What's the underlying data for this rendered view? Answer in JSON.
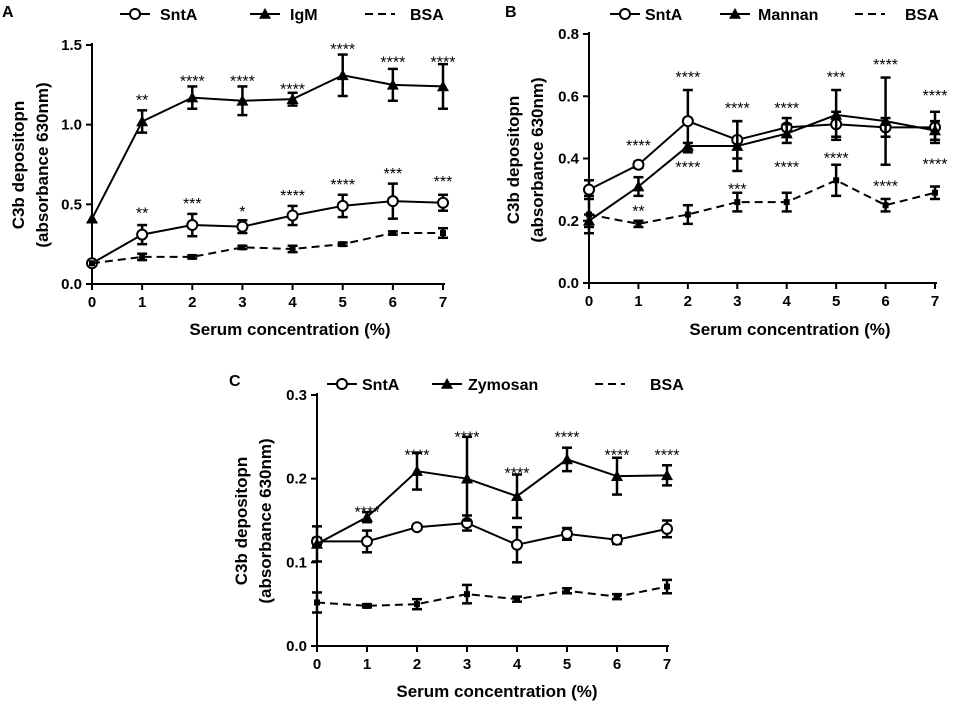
{
  "chart_data": [
    {
      "type": "line",
      "panel": "A",
      "xlabel": "Serum concentration (%)",
      "ylabel_line1": "C3b depositopn",
      "ylabel_line2": "(absorbance 630nm)",
      "x": [
        0,
        1,
        2,
        3,
        4,
        5,
        6,
        7
      ],
      "ylim": [
        0,
        1.5
      ],
      "yticks": [
        "0.0",
        "0.5",
        "1.0",
        "1.5"
      ],
      "xticks": [
        "0",
        "1",
        "2",
        "3",
        "4",
        "5",
        "6",
        "7"
      ],
      "legend": [
        "SntA",
        "IgM",
        "BSA"
      ],
      "series": [
        {
          "name": "SntA",
          "marker": "circle",
          "values": [
            0.13,
            0.31,
            0.37,
            0.36,
            0.43,
            0.49,
            0.52,
            0.51
          ],
          "errors": [
            0.0,
            0.06,
            0.07,
            0.04,
            0.06,
            0.07,
            0.11,
            0.05
          ]
        },
        {
          "name": "IgM",
          "marker": "triangle",
          "values": [
            0.41,
            1.02,
            1.17,
            1.15,
            1.16,
            1.31,
            1.25,
            1.24
          ],
          "errors": [
            0.0,
            0.07,
            0.07,
            0.09,
            0.04,
            0.13,
            0.1,
            0.14
          ]
        },
        {
          "name": "BSA",
          "marker": "none",
          "dashed": true,
          "values": [
            0.13,
            0.17,
            0.17,
            0.23,
            0.22,
            0.25,
            0.32,
            0.32
          ],
          "errors": [
            0.0,
            0.02,
            0.01,
            0.01,
            0.02,
            0.01,
            0.01,
            0.03
          ]
        }
      ],
      "significance": [
        {
          "x": 1,
          "y": 1.17,
          "label": "**"
        },
        {
          "x": 2,
          "y": 1.29,
          "label": "****"
        },
        {
          "x": 3,
          "y": 1.29,
          "label": "****"
        },
        {
          "x": 4,
          "y": 1.24,
          "label": "****"
        },
        {
          "x": 5,
          "y": 1.49,
          "label": "****"
        },
        {
          "x": 6,
          "y": 1.41,
          "label": "****"
        },
        {
          "x": 7,
          "y": 1.41,
          "label": "****"
        },
        {
          "x": 1,
          "y": 0.46,
          "label": "**"
        },
        {
          "x": 2,
          "y": 0.52,
          "label": "***"
        },
        {
          "x": 3,
          "y": 0.47,
          "label": "*"
        },
        {
          "x": 4,
          "y": 0.57,
          "label": "****"
        },
        {
          "x": 5,
          "y": 0.64,
          "label": "****"
        },
        {
          "x": 6,
          "y": 0.71,
          "label": "***"
        },
        {
          "x": 7,
          "y": 0.66,
          "label": "***"
        }
      ]
    },
    {
      "type": "line",
      "panel": "B",
      "xlabel": "Serum concentration (%)",
      "ylabel_line1": "C3b depositopn",
      "ylabel_line2": "(absorbance 630nm)",
      "x": [
        0,
        1,
        2,
        3,
        4,
        5,
        6,
        7
      ],
      "ylim": [
        0,
        0.8
      ],
      "yticks": [
        "0.0",
        "0.2",
        "0.4",
        "0.6",
        "0.8"
      ],
      "xticks": [
        "0",
        "1",
        "2",
        "3",
        "4",
        "5",
        "6",
        "7"
      ],
      "legend": [
        "SntA",
        "Mannan",
        "BSA"
      ],
      "series": [
        {
          "name": "SntA",
          "marker": "circle",
          "values": [
            0.3,
            0.38,
            0.52,
            0.46,
            0.5,
            0.51,
            0.5,
            0.5
          ],
          "errors": [
            0.03,
            0.01,
            0.1,
            0.06,
            0.03,
            0.04,
            0.03,
            0.05
          ]
        },
        {
          "name": "Mannan",
          "marker": "triangle",
          "values": [
            0.2,
            0.31,
            0.44,
            0.44,
            0.48,
            0.54,
            0.52,
            0.49
          ],
          "errors": [
            0.02,
            0.03,
            0.01,
            0.08,
            0.03,
            0.08,
            0.14,
            0.03
          ]
        },
        {
          "name": "BSA",
          "marker": "none",
          "dashed": true,
          "values": [
            0.22,
            0.19,
            0.22,
            0.26,
            0.26,
            0.33,
            0.25,
            0.29
          ],
          "errors": [
            0.06,
            0.01,
            0.03,
            0.03,
            0.03,
            0.05,
            0.02,
            0.02
          ]
        }
      ],
      "significance": [
        {
          "x": 1,
          "y": 0.45,
          "label": "****"
        },
        {
          "x": 2,
          "y": 0.67,
          "label": "****"
        },
        {
          "x": 3,
          "y": 0.57,
          "label": "****"
        },
        {
          "x": 4,
          "y": 0.57,
          "label": "****"
        },
        {
          "x": 5,
          "y": 0.67,
          "label": "***"
        },
        {
          "x": 6,
          "y": 0.71,
          "label": "****"
        },
        {
          "x": 7,
          "y": 0.61,
          "label": "****"
        },
        {
          "x": 2,
          "y": 0.38,
          "label": "****"
        },
        {
          "x": 4,
          "y": 0.38,
          "label": "****"
        },
        {
          "x": 5,
          "y": 0.41,
          "label": "****"
        },
        {
          "x": 6,
          "y": 0.32,
          "label": "****"
        },
        {
          "x": 7,
          "y": 0.39,
          "label": "****"
        },
        {
          "x": 1,
          "y": 0.24,
          "label": "**"
        },
        {
          "x": 3,
          "y": 0.31,
          "label": "***"
        }
      ]
    },
    {
      "type": "line",
      "panel": "C",
      "xlabel": "Serum concentration (%)",
      "ylabel_line1": "C3b depositopn",
      "ylabel_line2": "(absorbance 630nm)",
      "x": [
        0,
        1,
        2,
        3,
        4,
        5,
        6,
        7
      ],
      "ylim": [
        0,
        0.3
      ],
      "yticks": [
        "0.0",
        "0.1",
        "0.2",
        "0.3"
      ],
      "xticks": [
        "0",
        "1",
        "2",
        "3",
        "4",
        "5",
        "6",
        "7"
      ],
      "legend": [
        "SntA",
        "Zymosan",
        "BSA"
      ],
      "series": [
        {
          "name": "SntA",
          "marker": "circle",
          "values": [
            0.125,
            0.125,
            0.142,
            0.147,
            0.121,
            0.134,
            0.127,
            0.14
          ],
          "errors": [
            0.004,
            0.013,
            0.003,
            0.009,
            0.021,
            0.007,
            0.005,
            0.01
          ]
        },
        {
          "name": "Zymosan",
          "marker": "triangle",
          "values": [
            0.122,
            0.154,
            0.209,
            0.2,
            0.179,
            0.223,
            0.203,
            0.204
          ],
          "errors": [
            0.021,
            0.006,
            0.022,
            0.05,
            0.026,
            0.014,
            0.022,
            0.012
          ]
        },
        {
          "name": "BSA",
          "marker": "none",
          "dashed": true,
          "values": [
            0.052,
            0.048,
            0.05,
            0.062,
            0.056,
            0.066,
            0.059,
            0.071
          ],
          "errors": [
            0.012,
            0.002,
            0.006,
            0.011,
            0.003,
            0.003,
            0.003,
            0.008
          ]
        }
      ],
      "significance": [
        {
          "x": 1,
          "y": 0.163,
          "label": "****"
        },
        {
          "x": 2,
          "y": 0.231,
          "label": "****"
        },
        {
          "x": 3,
          "y": 0.253,
          "label": "****"
        },
        {
          "x": 4,
          "y": 0.21,
          "label": "****"
        },
        {
          "x": 5,
          "y": 0.253,
          "label": "****"
        },
        {
          "x": 6,
          "y": 0.231,
          "label": "****"
        },
        {
          "x": 7,
          "y": 0.231,
          "label": "****"
        }
      ]
    }
  ]
}
